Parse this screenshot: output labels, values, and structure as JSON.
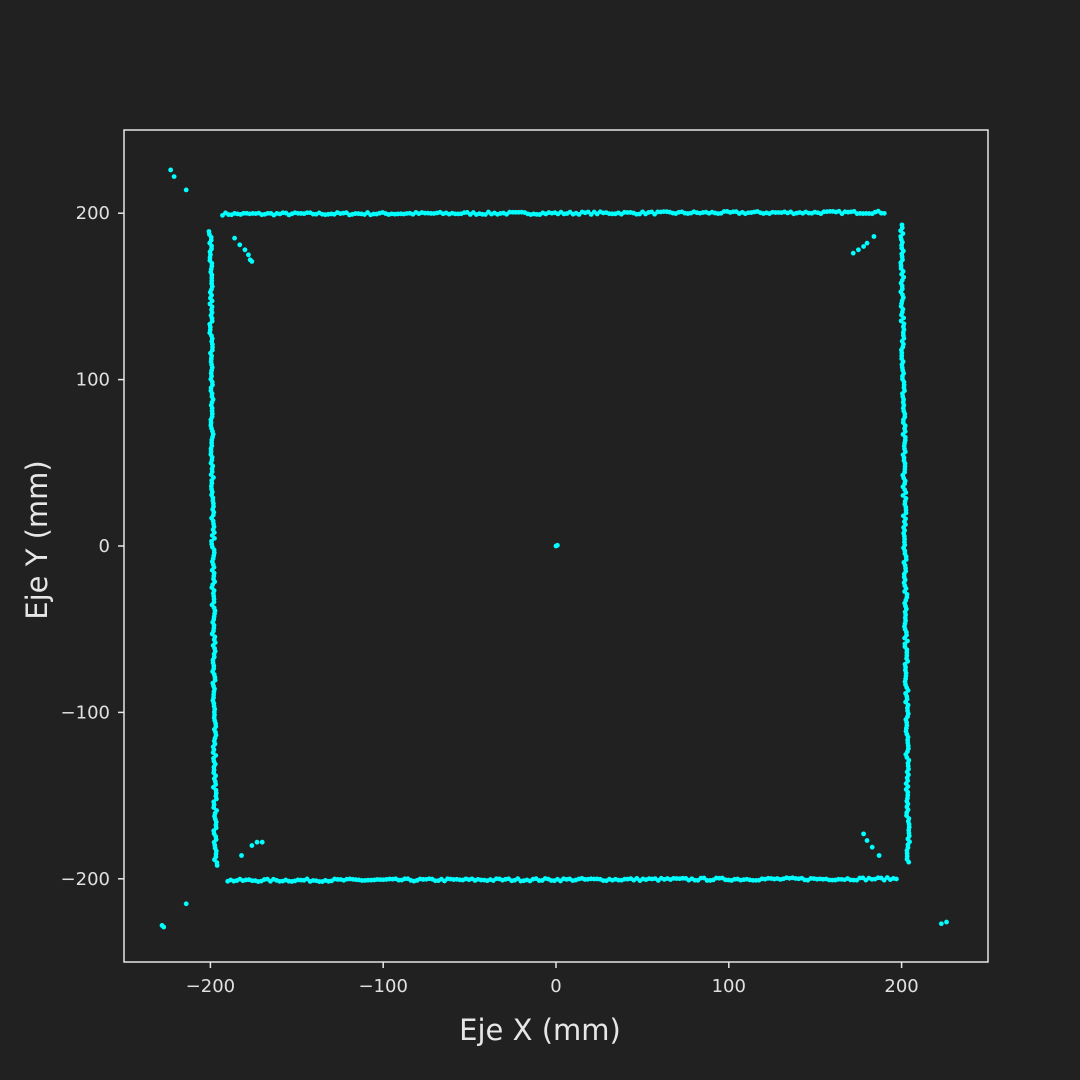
{
  "colors": {
    "background": "#212121",
    "axes_frame": "#e6e6e6",
    "text": "#e0e0e0",
    "points": "#00ffff"
  },
  "chart_data": {
    "type": "scatter",
    "title": "",
    "xlabel": "Eje X (mm)",
    "ylabel": "Eje Y (mm)",
    "xlim": [
      -250,
      250
    ],
    "ylim": [
      -250,
      250
    ],
    "xticks": [
      -200,
      -100,
      0,
      100,
      200
    ],
    "yticks": [
      -200,
      -100,
      0,
      100,
      200
    ],
    "xtick_labels": [
      "−200",
      "−100",
      "0",
      "100",
      "200"
    ],
    "ytick_labels": [
      "−200",
      "−100",
      "0",
      "100",
      "200"
    ],
    "grid": false,
    "legend": "none",
    "series": [
      {
        "segments": [
          {
            "side": "top",
            "from": [
              -193,
              199.5
            ],
            "to": [
              190,
              200.5
            ],
            "n": 220,
            "jitter": 0.8
          },
          {
            "side": "bottom",
            "from": [
              -190,
              -201
            ],
            "to": [
              197,
              -200
            ],
            "n": 220,
            "jitter": 0.8
          },
          {
            "side": "left",
            "from": [
              -200,
              189
            ],
            "to": [
              -197,
              -192
            ],
            "n": 220,
            "jitter": 0.9
          },
          {
            "side": "right",
            "from": [
              200,
              193
            ],
            "to": [
              204,
              -190
            ],
            "n": 220,
            "jitter": 0.9
          }
        ],
        "points": [
          [
            0,
            0
          ],
          [
            0.8,
            0.4
          ],
          [
            -223,
            226
          ],
          [
            -221,
            222
          ],
          [
            -214,
            214
          ],
          [
            -186,
            185
          ],
          [
            -183,
            181
          ],
          [
            -180,
            178
          ],
          [
            -178,
            175
          ],
          [
            -177,
            172
          ],
          [
            -176,
            171
          ],
          [
            172,
            176
          ],
          [
            175,
            178
          ],
          [
            178,
            180
          ],
          [
            180,
            182
          ],
          [
            184,
            186
          ],
          [
            -182,
            -186
          ],
          [
            -176,
            -180
          ],
          [
            -173,
            -178
          ],
          [
            -170,
            -178
          ],
          [
            178,
            -173
          ],
          [
            180,
            -177
          ],
          [
            183,
            -181
          ],
          [
            187,
            -186
          ],
          [
            -227,
            -229
          ],
          [
            -228,
            -228
          ],
          [
            -214,
            -215
          ],
          [
            223,
            -227
          ],
          [
            226,
            -226
          ]
        ]
      }
    ]
  }
}
